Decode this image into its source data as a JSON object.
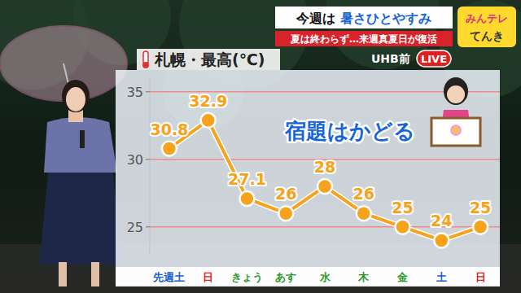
{
  "header": {
    "headline_prefix": "今週は",
    "headline": "暑さひとやすみ",
    "subhead": "夏は終わらず…来週真夏日が復活",
    "logo_top": "みんテレ",
    "logo_bottom": "てんき",
    "location": "UHB前",
    "live": "LIVE"
  },
  "chart_data": {
    "type": "line",
    "title": "札幌・最高(℃)",
    "annotation": "宿題はかどる",
    "categories": [
      "先週土",
      "日",
      "きょう",
      "あす",
      "水",
      "木",
      "金",
      "土",
      "日"
    ],
    "values": [
      30.8,
      32.9,
      27.1,
      26,
      28,
      26,
      25,
      24,
      25
    ],
    "color": "#f7a21b",
    "marker": "circle",
    "ylim": [
      23,
      36
    ],
    "yticks": [
      25,
      30,
      35
    ],
    "grid": true,
    "data_labels": true
  }
}
